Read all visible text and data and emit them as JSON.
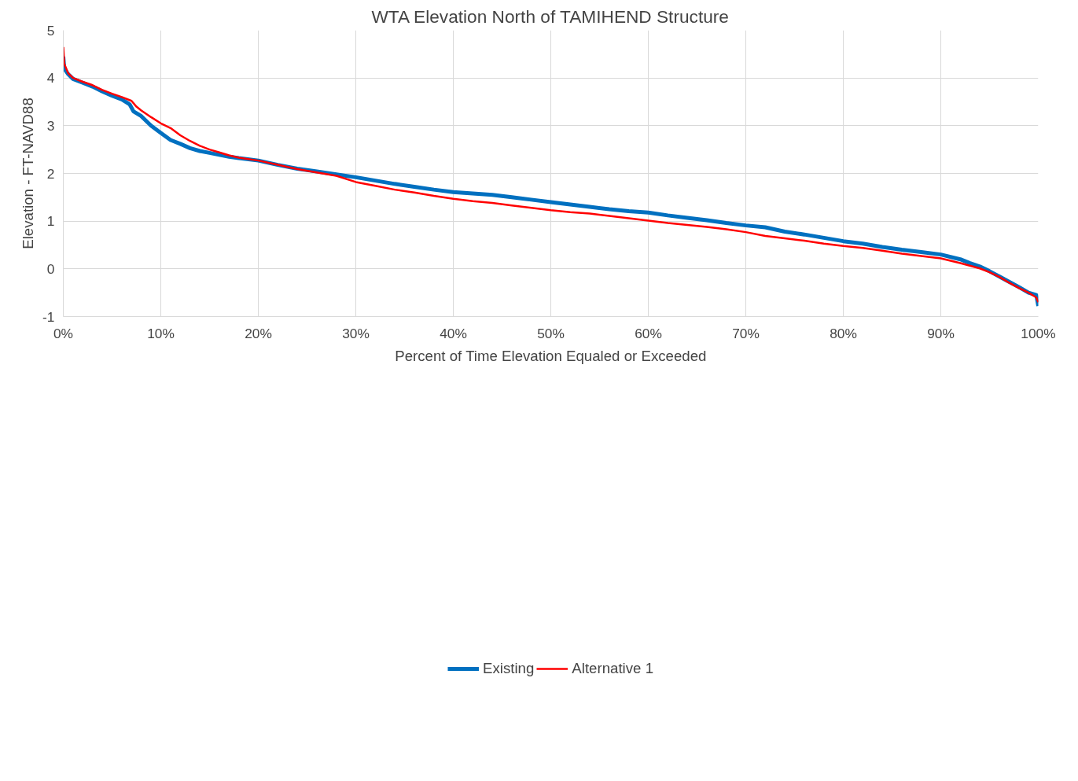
{
  "chart_data": {
    "type": "line",
    "title": "WTA Elevation North of TAMIHEND Structure",
    "xlabel": "Percent of Time Elevation Equaled or Exceeded",
    "ylabel": "Elevation - FT-NAVD88",
    "x": [
      0,
      0.1,
      0.5,
      1,
      2,
      3,
      4,
      5,
      6,
      6.8,
      7.2,
      8,
      9,
      10,
      11,
      12,
      13,
      14,
      15,
      16,
      17,
      18,
      20,
      22,
      24,
      26,
      28,
      30,
      32,
      34,
      36,
      38,
      40,
      42,
      44,
      46,
      48,
      50,
      52,
      54,
      56,
      58,
      60,
      62,
      64,
      66,
      68,
      70,
      72,
      74,
      76,
      78,
      80,
      82,
      84,
      86,
      88,
      90,
      92,
      93,
      94,
      95,
      96,
      97,
      98,
      99,
      99.8,
      100
    ],
    "series": [
      {
        "name": "Existing",
        "color": "#0070c0",
        "values": [
          4.45,
          4.2,
          4.08,
          3.98,
          3.9,
          3.82,
          3.72,
          3.63,
          3.55,
          3.45,
          3.3,
          3.2,
          3.0,
          2.85,
          2.7,
          2.62,
          2.53,
          2.47,
          2.43,
          2.39,
          2.35,
          2.32,
          2.27,
          2.18,
          2.1,
          2.04,
          1.98,
          1.92,
          1.85,
          1.78,
          1.72,
          1.66,
          1.61,
          1.58,
          1.55,
          1.5,
          1.45,
          1.4,
          1.35,
          1.3,
          1.25,
          1.21,
          1.18,
          1.12,
          1.07,
          1.02,
          0.96,
          0.91,
          0.87,
          0.78,
          0.72,
          0.65,
          0.58,
          0.53,
          0.46,
          0.4,
          0.35,
          0.3,
          0.2,
          0.12,
          0.05,
          -0.05,
          -0.16,
          -0.27,
          -0.38,
          -0.5,
          -0.55,
          -0.78
        ]
      },
      {
        "name": "Alternative 1",
        "color": "#ff0000",
        "x": [
          0,
          0.1,
          0.5,
          1,
          2,
          3,
          4,
          5,
          6,
          7,
          7.5,
          8,
          9,
          10,
          11,
          12,
          13,
          14,
          15,
          16,
          17,
          18,
          20,
          22,
          24,
          26,
          28,
          30,
          32,
          34,
          36,
          38,
          40,
          42,
          44,
          46,
          48,
          50,
          52,
          54,
          56,
          58,
          60,
          62,
          64,
          66,
          68,
          70,
          72,
          74,
          76,
          78,
          80,
          82,
          84,
          86,
          88,
          90,
          92,
          94,
          95,
          96,
          97,
          98,
          99,
          99.8,
          100
        ],
        "values": [
          4.65,
          4.3,
          4.1,
          4.0,
          3.92,
          3.85,
          3.75,
          3.67,
          3.6,
          3.52,
          3.4,
          3.32,
          3.18,
          3.05,
          2.95,
          2.8,
          2.68,
          2.58,
          2.5,
          2.44,
          2.38,
          2.33,
          2.27,
          2.18,
          2.09,
          2.02,
          1.95,
          1.82,
          1.74,
          1.66,
          1.6,
          1.53,
          1.47,
          1.42,
          1.38,
          1.33,
          1.28,
          1.23,
          1.19,
          1.16,
          1.11,
          1.06,
          1.01,
          0.96,
          0.92,
          0.88,
          0.83,
          0.77,
          0.69,
          0.64,
          0.59,
          0.53,
          0.48,
          0.44,
          0.38,
          0.32,
          0.27,
          0.22,
          0.12,
          0.01,
          -0.07,
          -0.17,
          -0.29,
          -0.4,
          -0.5,
          -0.6,
          -0.7
        ]
      }
    ],
    "xlim": [
      0,
      100
    ],
    "ylim": [
      -1,
      5
    ],
    "xticks": [
      {
        "value": 0,
        "label": "0%"
      },
      {
        "value": 10,
        "label": "10%"
      },
      {
        "value": 20,
        "label": "20%"
      },
      {
        "value": 30,
        "label": "30%"
      },
      {
        "value": 40,
        "label": "40%"
      },
      {
        "value": 50,
        "label": "50%"
      },
      {
        "value": 60,
        "label": "60%"
      },
      {
        "value": 70,
        "label": "70%"
      },
      {
        "value": 80,
        "label": "80%"
      },
      {
        "value": 90,
        "label": "90%"
      },
      {
        "value": 100,
        "label": "100%"
      }
    ],
    "yticks": [
      -1,
      0,
      1,
      2,
      3,
      4,
      5
    ],
    "grid": true,
    "legend": "bottom",
    "marker": "none",
    "line_style": "solid"
  }
}
